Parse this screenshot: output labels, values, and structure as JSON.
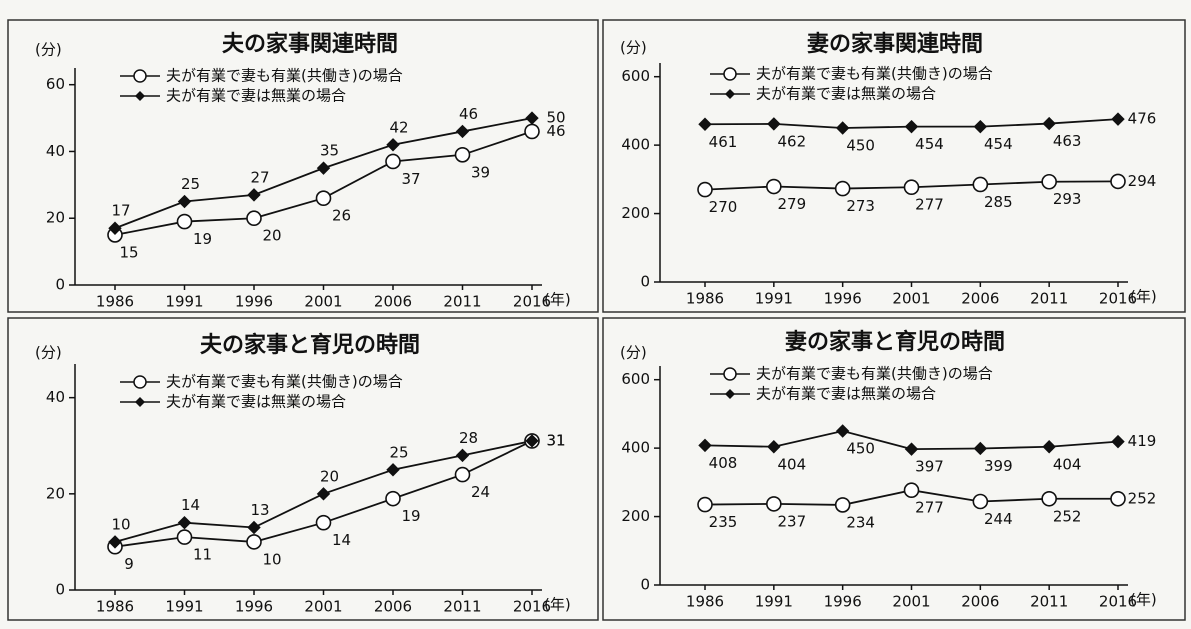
{
  "chart_data": [
    {
      "type": "line",
      "title": "夫の家事関連時間",
      "y_label": "(分)",
      "x_label": "(年)",
      "categories": [
        "1986",
        "1991",
        "1996",
        "2001",
        "2006",
        "2011",
        "2016"
      ],
      "ylim": [
        0,
        65
      ],
      "yticks": [
        0,
        20,
        40,
        60
      ],
      "series": [
        {
          "name": "夫が有業で妻も有業(共働き)の場合",
          "color": "#111111",
          "marker": "circle",
          "values": [
            15,
            19,
            20,
            26,
            37,
            39,
            46
          ]
        },
        {
          "name": "夫が有業で妻は無業の場合",
          "color": "#111111",
          "marker": "diamond",
          "values": [
            17,
            25,
            27,
            35,
            42,
            46,
            50
          ]
        }
      ]
    },
    {
      "type": "line",
      "title": "妻の家事関連時間",
      "y_label": "(分)",
      "x_label": "(年)",
      "categories": [
        "1986",
        "1991",
        "1996",
        "2001",
        "2006",
        "2011",
        "2016"
      ],
      "ylim": [
        0,
        640
      ],
      "yticks": [
        0,
        200,
        400,
        600
      ],
      "series": [
        {
          "name": "夫が有業で妻も有業(共働き)の場合",
          "color": "#111111",
          "marker": "circle",
          "values": [
            270,
            279,
            273,
            277,
            285,
            293,
            294
          ]
        },
        {
          "name": "夫が有業で妻は無業の場合",
          "color": "#111111",
          "marker": "diamond",
          "values": [
            461,
            462,
            450,
            454,
            454,
            463,
            476
          ]
        }
      ]
    },
    {
      "type": "line",
      "title": "夫の家事と育児の時間",
      "y_label": "(分)",
      "x_label": "(年)",
      "categories": [
        "1986",
        "1991",
        "1996",
        "2001",
        "2006",
        "2011",
        "2016"
      ],
      "ylim": [
        0,
        47
      ],
      "yticks": [
        0,
        20,
        40
      ],
      "series": [
        {
          "name": "夫が有業で妻も有業(共働き)の場合",
          "color": "#111111",
          "marker": "circle",
          "values": [
            9,
            11,
            10,
            14,
            19,
            24,
            31
          ]
        },
        {
          "name": "夫が有業で妻は無業の場合",
          "color": "#111111",
          "marker": "diamond",
          "values": [
            10,
            14,
            13,
            20,
            25,
            28,
            31
          ]
        }
      ]
    },
    {
      "type": "line",
      "title": "妻の家事と育児の時間",
      "y_label": "(分)",
      "x_label": "(年)",
      "categories": [
        "1986",
        "1991",
        "1996",
        "2001",
        "2006",
        "2011",
        "2016"
      ],
      "ylim": [
        0,
        640
      ],
      "yticks": [
        0,
        200,
        400,
        600
      ],
      "series": [
        {
          "name": "夫が有業で妻も有業(共働き)の場合",
          "color": "#111111",
          "marker": "circle",
          "values": [
            235,
            237,
            234,
            277,
            244,
            252,
            252
          ]
        },
        {
          "name": "夫が有業で妻は無業の場合",
          "color": "#111111",
          "marker": "diamond",
          "values": [
            408,
            404,
            450,
            397,
            399,
            404,
            419
          ]
        }
      ]
    }
  ]
}
